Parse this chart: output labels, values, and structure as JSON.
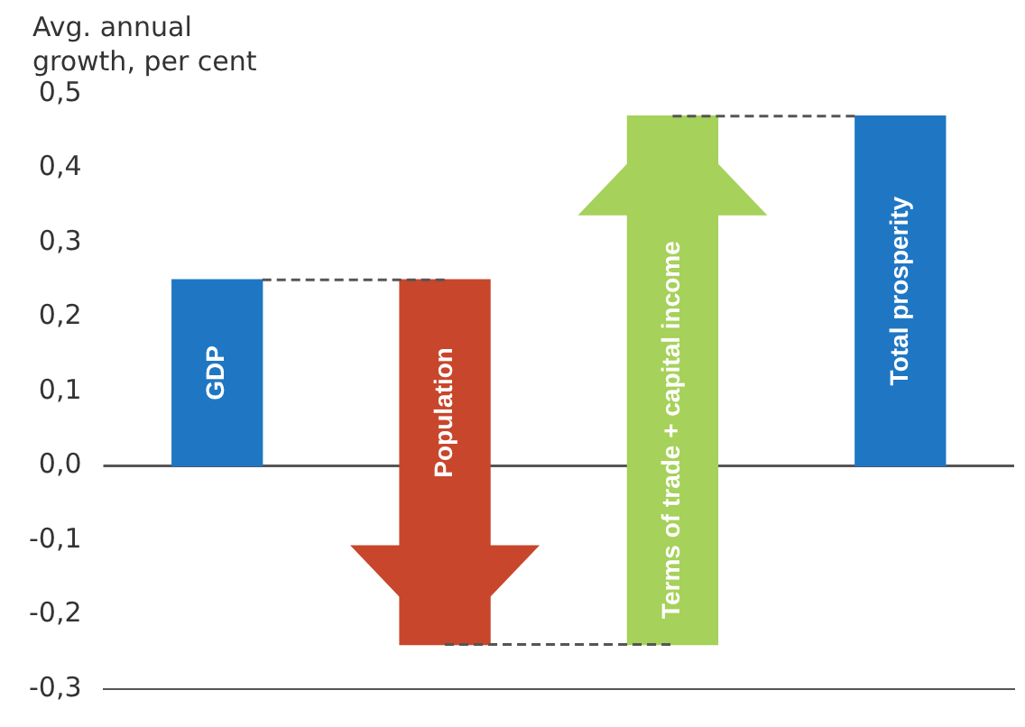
{
  "chart_data": {
    "type": "bar",
    "ylabel": "Avg. annual growth, per cent",
    "categories": [
      "GDP",
      "Population",
      "Terms of trade + capital income",
      "Total prosperity"
    ],
    "values": [
      0.25,
      -0.49,
      0.71,
      0.47
    ],
    "base": [
      0,
      0.25,
      -0.24,
      0
    ],
    "colors": [
      "#1f77c4",
      "#c8462b",
      "#a6d15a",
      "#1f77c4"
    ],
    "ylim": [
      -0.3,
      0.5
    ],
    "yticks": [
      {
        "value": -0.3,
        "label": "-0,3"
      },
      {
        "value": -0.2,
        "label": "-0,2"
      },
      {
        "value": -0.1,
        "label": "-0,1"
      },
      {
        "value": 0,
        "label": "0,0"
      },
      {
        "value": 0.1,
        "label": "0,1"
      },
      {
        "value": 0.2,
        "label": "0,2"
      },
      {
        "value": 0.3,
        "label": "0,3"
      },
      {
        "value": 0.4,
        "label": "0,4"
      },
      {
        "value": 0.5,
        "label": "0,5"
      }
    ],
    "grid": false,
    "legend": false
  }
}
